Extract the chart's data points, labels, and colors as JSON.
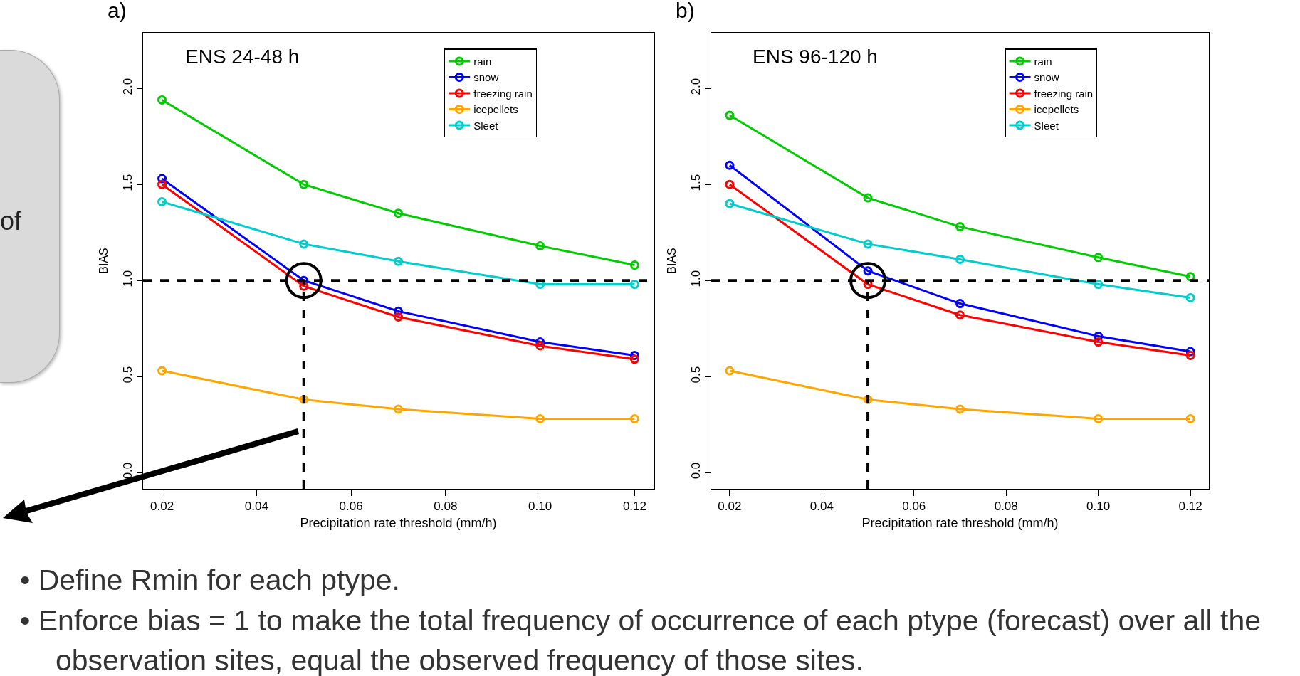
{
  "chart_data": [
    {
      "type": "line",
      "title": "a)",
      "subtitle": "ENS 24-48 h",
      "xlabel": "Precipitation rate threshold (mm/h)",
      "ylabel": "BIAS",
      "x": [
        0.02,
        0.05,
        0.07,
        0.1,
        0.12
      ],
      "series": [
        {
          "name": "rain",
          "color": "#00cc00",
          "values": [
            1.94,
            1.5,
            1.35,
            1.18,
            1.08
          ]
        },
        {
          "name": "snow",
          "color": "#0000ff",
          "values": [
            1.53,
            1.0,
            0.84,
            0.68,
            0.61
          ]
        },
        {
          "name": "freezing rain",
          "color": "#ff0000",
          "values": [
            1.5,
            0.97,
            0.81,
            0.66,
            0.59
          ]
        },
        {
          "name": "icepellets",
          "color": "#ffa500",
          "values": [
            0.53,
            0.38,
            0.33,
            0.28,
            0.28
          ]
        },
        {
          "name": "Sleet",
          "color": "#00cdcd",
          "values": [
            1.41,
            1.19,
            1.1,
            0.98,
            0.98
          ]
        }
      ],
      "xlim": [
        0.016,
        0.124
      ],
      "xticks": [
        0.02,
        0.04,
        0.06,
        0.08,
        {
          "value": 0.1,
          "label": "0.10"
        },
        0.12
      ],
      "ylim": [
        -0.085,
        2.29
      ],
      "yticks": [
        {
          "value": 0,
          "label": "0.0"
        },
        {
          "value": 0.5,
          "label": "0.5"
        },
        {
          "value": 1,
          "label": "1.0"
        },
        {
          "value": 1.5,
          "label": "1.5"
        },
        {
          "value": 2,
          "label": "2.0"
        }
      ],
      "ref_lines": [
        {
          "axis": "y",
          "value": 1,
          "color": "#000000",
          "line_style": "dashed"
        },
        {
          "axis": "x",
          "value": 0.05,
          "color": "#000000",
          "line_style": "dashed"
        }
      ],
      "annotations": [
        "of"
      ],
      "grid": false,
      "legend": "top right",
      "marker": "circle",
      "line_style": "solid"
    },
    {
      "type": "line",
      "title": "b)",
      "subtitle": "ENS 96-120 h",
      "xlabel": "Precipitation rate threshold (mm/h)",
      "ylabel": "BIAS",
      "x": [
        0.02,
        0.05,
        0.07,
        0.1,
        0.12
      ],
      "series": [
        {
          "name": "rain",
          "color": "#00cc00",
          "values": [
            1.86,
            1.43,
            1.28,
            1.12,
            1.02
          ]
        },
        {
          "name": "snow",
          "color": "#0000ff",
          "values": [
            1.6,
            1.05,
            0.88,
            0.71,
            0.63
          ]
        },
        {
          "name": "freezing rain",
          "color": "#ff0000",
          "values": [
            1.5,
            0.98,
            0.82,
            0.68,
            0.61
          ]
        },
        {
          "name": "icepellets",
          "color": "#ffa500",
          "values": [
            0.53,
            0.38,
            0.33,
            0.28,
            0.28
          ]
        },
        {
          "name": "Sleet",
          "color": "#00cdcd",
          "values": [
            1.4,
            1.19,
            1.11,
            0.98,
            0.91
          ]
        }
      ],
      "xlim": [
        0.016,
        0.124
      ],
      "xticks": [
        0.02,
        0.04,
        0.06,
        0.08,
        {
          "value": 0.1,
          "label": "0.10"
        },
        0.12
      ],
      "ylim": [
        -0.085,
        2.29
      ],
      "yticks": [
        {
          "value": 0,
          "label": "0.0"
        },
        {
          "value": 0.5,
          "label": "0.5"
        },
        {
          "value": 1,
          "label": "1.0"
        },
        {
          "value": 1.5,
          "label": "1.5"
        },
        {
          "value": 2,
          "label": "2.0"
        }
      ],
      "ref_lines": [
        {
          "axis": "y",
          "value": 1,
          "color": "#000000",
          "line_style": "dashed"
        },
        {
          "axis": "x",
          "value": 0.05,
          "color": "#000000",
          "line_style": "dashed"
        }
      ],
      "annotations": [
        "• Define Rmin for each ptype.",
        "• Enforce bias = 1 to make the total frequency of occurrence of each ptype (forecast) over all the observation sites, equal the observed frequency of those sites."
      ],
      "grid": false,
      "legend": "top right",
      "marker": "circle",
      "line_style": "solid"
    }
  ]
}
